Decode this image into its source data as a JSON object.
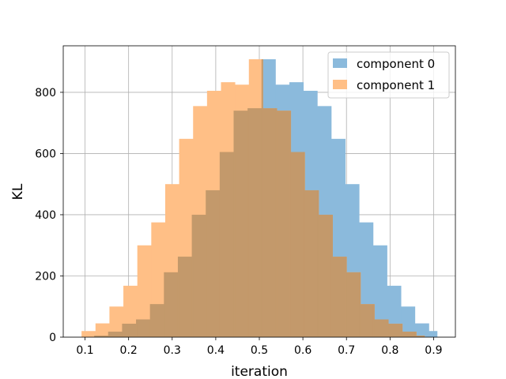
{
  "chart_data": {
    "type": "histogram",
    "title": "",
    "xlabel": "iteration",
    "ylabel": "KL",
    "xlim": [
      0.05,
      0.95
    ],
    "ylim": [
      0,
      952
    ],
    "xticks": [
      0.1,
      0.2,
      0.3,
      0.4,
      0.5,
      0.6,
      0.7,
      0.8,
      0.9
    ],
    "yticks": [
      0,
      200,
      400,
      600,
      800
    ],
    "grid": true,
    "legend": "top-right",
    "overlap_color": "#c3996b",
    "series": [
      {
        "name": "component 0",
        "color": "#8bbadc",
        "bins": [
          0.121,
          0.153,
          0.185,
          0.217,
          0.249,
          0.281,
          0.313,
          0.345,
          0.377,
          0.409,
          0.441,
          0.473,
          0.505,
          0.537,
          0.569,
          0.601,
          0.633,
          0.665,
          0.697,
          0.729,
          0.761,
          0.793,
          0.825,
          0.857,
          0.889,
          0.908
        ],
        "values": [
          5,
          18,
          44,
          58,
          108,
          212,
          263,
          400,
          480,
          605,
          740,
          748,
          908,
          825,
          833,
          805,
          755,
          648,
          500,
          375,
          300,
          168,
          100,
          45,
          20
        ]
      },
      {
        "name": "component 1",
        "color": "#ffbf86",
        "bins": [
          0.092,
          0.124,
          0.156,
          0.188,
          0.22,
          0.252,
          0.284,
          0.316,
          0.348,
          0.38,
          0.412,
          0.444,
          0.476,
          0.508,
          0.54,
          0.572,
          0.604,
          0.636,
          0.668,
          0.7,
          0.732,
          0.764,
          0.796,
          0.828,
          0.86,
          0.879
        ],
        "values": [
          20,
          45,
          100,
          168,
          300,
          375,
          500,
          648,
          755,
          805,
          833,
          825,
          908,
          748,
          740,
          605,
          480,
          400,
          263,
          212,
          108,
          58,
          44,
          18,
          5
        ]
      }
    ]
  }
}
